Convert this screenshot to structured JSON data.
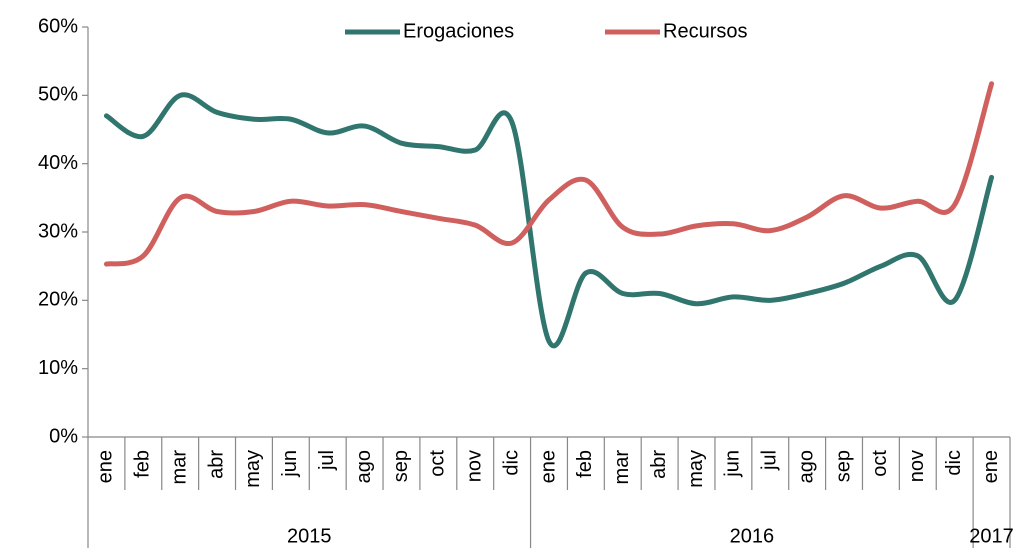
{
  "chart_data": {
    "type": "line",
    "categories": [
      "ene",
      "feb",
      "mar",
      "abr",
      "may",
      "jun",
      "jul",
      "ago",
      "sep",
      "oct",
      "nov",
      "dic",
      "ene",
      "feb",
      "mar",
      "abr",
      "may",
      "jun",
      "jul",
      "ago",
      "sep",
      "oct",
      "nov",
      "dic",
      "ene"
    ],
    "groups": [
      {
        "label": "2015",
        "span": 12
      },
      {
        "label": "2016",
        "span": 12
      },
      {
        "label": "2017",
        "span": 1
      }
    ],
    "series": [
      {
        "name": "Erogaciones",
        "color": "#31766e",
        "values": [
          47,
          44,
          50,
          47.5,
          46.5,
          46.5,
          44.5,
          45.5,
          43,
          42.5,
          42,
          46,
          14,
          24,
          21,
          21,
          19.5,
          20.5,
          20,
          21,
          22.5,
          25,
          26.5,
          20,
          38
        ]
      },
      {
        "name": "Recursos",
        "color": "#d0605e",
        "values": [
          25.3,
          26.5,
          35,
          33,
          33,
          34.5,
          33.8,
          34,
          33,
          32,
          31,
          28.4,
          34.7,
          37.6,
          30.7,
          29.7,
          30.9,
          31.2,
          30.2,
          32.2,
          35.3,
          33.5,
          34.5,
          34,
          51.7
        ]
      }
    ],
    "ylim": [
      0,
      60
    ],
    "yticks": [
      {
        "value": 0,
        "label": "0%"
      },
      {
        "value": 10,
        "label": "10%"
      },
      {
        "value": 20,
        "label": "20%"
      },
      {
        "value": 30,
        "label": "30%"
      },
      {
        "value": 40,
        "label": "40%"
      },
      {
        "value": 50,
        "label": "50%"
      },
      {
        "value": 60,
        "label": "60%"
      }
    ],
    "legend": "top"
  }
}
